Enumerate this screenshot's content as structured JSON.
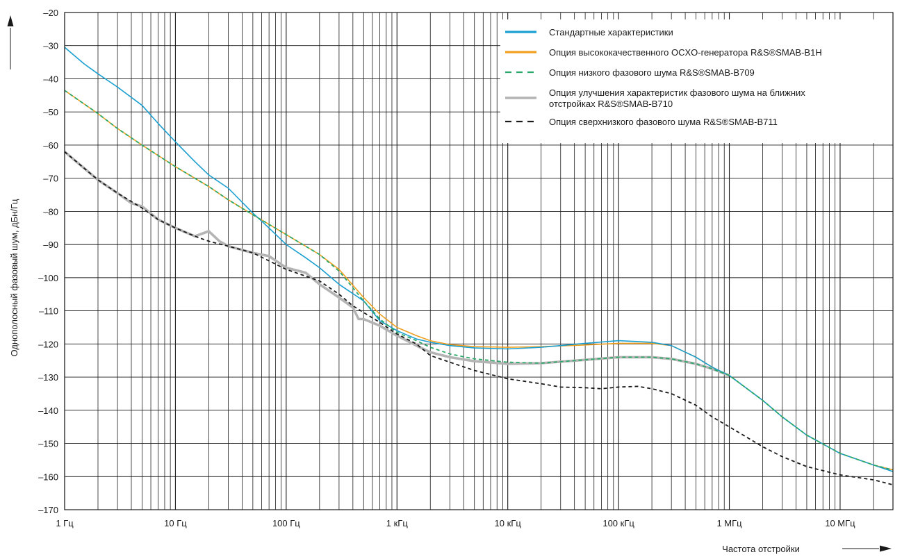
{
  "chart_data": {
    "type": "line",
    "title": "",
    "xlabel": "Частота отстройки",
    "ylabel": "Однополосный фазовый шум, дБн/Гц",
    "x_scale": "log",
    "xlim": [
      1,
      30000000
    ],
    "ylim": [
      -170,
      -20
    ],
    "x_ticks": [
      {
        "value": 1,
        "label": "1 Гц"
      },
      {
        "value": 10,
        "label": "10 Гц"
      },
      {
        "value": 100,
        "label": "100 Гц"
      },
      {
        "value": 1000,
        "label": "1 кГц"
      },
      {
        "value": 10000,
        "label": "10 кГц"
      },
      {
        "value": 100000,
        "label": "100 кГц"
      },
      {
        "value": 1000000,
        "label": "1 МГц"
      },
      {
        "value": 10000000,
        "label": "10 МГц"
      }
    ],
    "y_ticks": [
      {
        "value": -20,
        "label": "–20"
      },
      {
        "value": -30,
        "label": "–30"
      },
      {
        "value": -40,
        "label": "–40"
      },
      {
        "value": -50,
        "label": "–50"
      },
      {
        "value": -60,
        "label": "–60"
      },
      {
        "value": -70,
        "label": "–70"
      },
      {
        "value": -80,
        "label": "–80"
      },
      {
        "value": -90,
        "label": "–90"
      },
      {
        "value": -100,
        "label": "–100"
      },
      {
        "value": -110,
        "label": "–110"
      },
      {
        "value": -120,
        "label": "–120"
      },
      {
        "value": -130,
        "label": "–130"
      },
      {
        "value": -140,
        "label": "–140"
      },
      {
        "value": -150,
        "label": "–150"
      },
      {
        "value": -160,
        "label": "–160"
      },
      {
        "value": -170,
        "label": "–170"
      }
    ],
    "grid": true,
    "legend_position": "top-right",
    "series": [
      {
        "name": "Стандартные характеристики",
        "color": "#1a9fd0",
        "style": "solid",
        "points": [
          [
            1,
            -30.5
          ],
          [
            1.5,
            -35.5
          ],
          [
            2,
            -38.5
          ],
          [
            3,
            -42.5
          ],
          [
            5,
            -48
          ],
          [
            7,
            -53.5
          ],
          [
            10,
            -59
          ],
          [
            15,
            -65
          ],
          [
            20,
            -69
          ],
          [
            30,
            -73
          ],
          [
            50,
            -80.5
          ],
          [
            70,
            -85
          ],
          [
            100,
            -90
          ],
          [
            150,
            -94
          ],
          [
            200,
            -97
          ],
          [
            300,
            -102
          ],
          [
            500,
            -107
          ],
          [
            700,
            -113
          ],
          [
            1000,
            -116
          ],
          [
            1500,
            -118.5
          ],
          [
            2000,
            -119.5
          ],
          [
            3000,
            -120.5
          ],
          [
            5000,
            -121.2
          ],
          [
            10000,
            -121.5
          ],
          [
            20000,
            -121
          ],
          [
            30000,
            -120.5
          ],
          [
            50000,
            -119.8
          ],
          [
            100000,
            -119
          ],
          [
            200000,
            -119.5
          ],
          [
            300000,
            -120.5
          ],
          [
            500000,
            -124
          ],
          [
            700000,
            -127
          ],
          [
            1000000,
            -129.5
          ],
          [
            2000000,
            -137
          ],
          [
            3000000,
            -142
          ],
          [
            5000000,
            -147.5
          ],
          [
            10000000,
            -153
          ],
          [
            20000000,
            -156.5
          ],
          [
            30000000,
            -158.5
          ]
        ]
      },
      {
        "name": "Опция высококачественного OCXO-генератора R&S®SMAB-B1H",
        "color": "#f0a020",
        "style": "solid",
        "points": [
          [
            1,
            -43.5
          ],
          [
            2,
            -50.5
          ],
          [
            3,
            -55
          ],
          [
            5,
            -60
          ],
          [
            10,
            -66.5
          ],
          [
            20,
            -72.5
          ],
          [
            30,
            -76.5
          ],
          [
            50,
            -81
          ],
          [
            100,
            -87
          ],
          [
            200,
            -93
          ],
          [
            300,
            -97.5
          ],
          [
            500,
            -106
          ],
          [
            700,
            -111
          ],
          [
            1000,
            -115
          ],
          [
            1500,
            -117.5
          ],
          [
            2000,
            -119
          ],
          [
            3000,
            -120.2
          ],
          [
            5000,
            -120.8
          ],
          [
            10000,
            -121
          ],
          [
            20000,
            -120.8
          ],
          [
            50000,
            -120.3
          ],
          [
            100000,
            -119.8
          ],
          [
            200000,
            -119.8
          ],
          [
            300000,
            -120.5
          ],
          [
            500000,
            -124
          ],
          [
            700000,
            -127
          ],
          [
            1000000,
            -129.5
          ],
          [
            2000000,
            -137
          ],
          [
            3000000,
            -142
          ],
          [
            5000000,
            -147.5
          ],
          [
            10000000,
            -153
          ],
          [
            20000000,
            -156.5
          ],
          [
            30000000,
            -158
          ]
        ]
      },
      {
        "name": "Опция низкого фазового шума R&S®SMAB-B709",
        "color": "#2aa868",
        "style": "dashed",
        "points": [
          [
            1,
            -43.5
          ],
          [
            2,
            -50.5
          ],
          [
            3,
            -55
          ],
          [
            5,
            -60
          ],
          [
            10,
            -66.5
          ],
          [
            20,
            -72.5
          ],
          [
            30,
            -76.5
          ],
          [
            50,
            -81
          ],
          [
            100,
            -87
          ],
          [
            200,
            -93
          ],
          [
            300,
            -98
          ],
          [
            500,
            -107
          ],
          [
            700,
            -112.5
          ],
          [
            1000,
            -116.5
          ],
          [
            1500,
            -119
          ],
          [
            2000,
            -121
          ],
          [
            3000,
            -123
          ],
          [
            5000,
            -124.5
          ],
          [
            10000,
            -125.5
          ],
          [
            20000,
            -125.8
          ],
          [
            50000,
            -124.8
          ],
          [
            100000,
            -124
          ],
          [
            200000,
            -124
          ],
          [
            300000,
            -124.5
          ],
          [
            500000,
            -126
          ],
          [
            700000,
            -127.5
          ],
          [
            1000000,
            -129.5
          ],
          [
            2000000,
            -137
          ],
          [
            3000000,
            -142
          ],
          [
            5000000,
            -147.5
          ],
          [
            10000000,
            -153
          ],
          [
            20000000,
            -156.5
          ],
          [
            30000000,
            -158
          ]
        ]
      },
      {
        "name": "Опция улучшения характеристик фазового шума на ближних отстройках R&S®SMAB-B710",
        "color": "#b4b4b4",
        "style": "thick",
        "points": [
          [
            1,
            -62
          ],
          [
            2,
            -70.5
          ],
          [
            3,
            -74.5
          ],
          [
            4,
            -77.5
          ],
          [
            5,
            -78.5
          ],
          [
            7,
            -82.5
          ],
          [
            10,
            -85
          ],
          [
            15,
            -87.5
          ],
          [
            20,
            -86
          ],
          [
            25,
            -89
          ],
          [
            30,
            -90.5
          ],
          [
            50,
            -92.5
          ],
          [
            70,
            -93.5
          ],
          [
            100,
            -97
          ],
          [
            150,
            -98.5
          ],
          [
            200,
            -102
          ],
          [
            300,
            -106
          ],
          [
            400,
            -109
          ],
          [
            450,
            -112.5
          ],
          [
            500,
            -112.5
          ],
          [
            700,
            -114.5
          ],
          [
            1000,
            -117.5
          ],
          [
            1500,
            -120.5
          ],
          [
            2000,
            -122.5
          ],
          [
            3000,
            -124
          ],
          [
            5000,
            -125.2
          ],
          [
            10000,
            -126
          ],
          [
            20000,
            -125.8
          ],
          [
            50000,
            -124.8
          ],
          [
            100000,
            -124
          ],
          [
            200000,
            -124
          ],
          [
            300000,
            -124.5
          ],
          [
            500000,
            -126
          ],
          [
            700000,
            -127.5
          ],
          [
            1000000,
            -129.5
          ]
        ]
      },
      {
        "name": "Опция сверхнизкого фазового шума R&S®SMAB-B711",
        "color": "#1a1a1a",
        "style": "dashed",
        "points": [
          [
            1,
            -62
          ],
          [
            2,
            -70.5
          ],
          [
            3,
            -74.5
          ],
          [
            5,
            -79
          ],
          [
            7,
            -82.5
          ],
          [
            10,
            -85
          ],
          [
            15,
            -87.5
          ],
          [
            20,
            -89
          ],
          [
            30,
            -90.5
          ],
          [
            50,
            -92.5
          ],
          [
            100,
            -97.5
          ],
          [
            200,
            -101
          ],
          [
            300,
            -105
          ],
          [
            400,
            -108.5
          ],
          [
            500,
            -110.5
          ],
          [
            700,
            -113.5
          ],
          [
            1000,
            -117
          ],
          [
            1500,
            -120
          ],
          [
            2000,
            -123.5
          ],
          [
            3000,
            -125.5
          ],
          [
            5000,
            -128
          ],
          [
            10000,
            -130.5
          ],
          [
            20000,
            -132
          ],
          [
            30000,
            -133
          ],
          [
            50000,
            -133.2
          ],
          [
            70000,
            -133.5
          ],
          [
            100000,
            -133
          ],
          [
            150000,
            -132.8
          ],
          [
            200000,
            -133.5
          ],
          [
            300000,
            -135
          ],
          [
            500000,
            -138.5
          ],
          [
            700000,
            -142
          ],
          [
            1000000,
            -145
          ],
          [
            2000000,
            -151
          ],
          [
            3000000,
            -154
          ],
          [
            5000000,
            -157
          ],
          [
            10000000,
            -159.5
          ],
          [
            20000000,
            -161
          ],
          [
            30000000,
            -162.5
          ]
        ]
      }
    ]
  }
}
